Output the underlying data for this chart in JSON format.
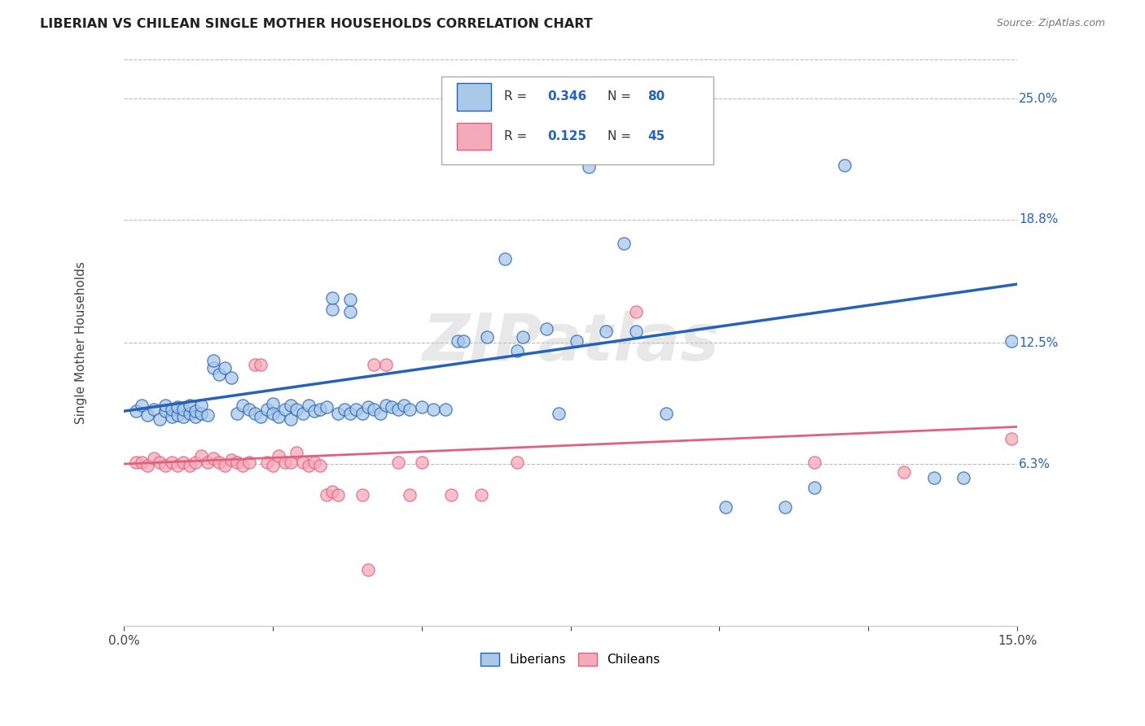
{
  "title": "LIBERIAN VS CHILEAN SINGLE MOTHER HOUSEHOLDS CORRELATION CHART",
  "source": "Source: ZipAtlas.com",
  "ylabel": "Single Mother Households",
  "x_min": 0.0,
  "x_max": 0.15,
  "y_min": -0.02,
  "y_max": 0.27,
  "y_ticks_right": [
    0.063,
    0.125,
    0.188,
    0.25
  ],
  "y_tick_labels_right": [
    "6.3%",
    "12.5%",
    "18.8%",
    "25.0%"
  ],
  "liberian_color": "#aac8e8",
  "chilean_color": "#f4aab8",
  "liberian_line_color": "#2563b8",
  "chilean_line_color": "#e06080",
  "lib_line_y0": 0.09,
  "lib_line_y1": 0.155,
  "chi_line_y0": 0.063,
  "chi_line_y1": 0.082,
  "watermark": "ZIPatlas",
  "background_color": "#ffffff",
  "grid_color": "#bbbbbb",
  "liberian_points": [
    [
      0.002,
      0.09
    ],
    [
      0.003,
      0.093
    ],
    [
      0.004,
      0.088
    ],
    [
      0.005,
      0.091
    ],
    [
      0.006,
      0.086
    ],
    [
      0.007,
      0.09
    ],
    [
      0.007,
      0.093
    ],
    [
      0.008,
      0.087
    ],
    [
      0.008,
      0.091
    ],
    [
      0.009,
      0.088
    ],
    [
      0.009,
      0.092
    ],
    [
      0.01,
      0.087
    ],
    [
      0.01,
      0.091
    ],
    [
      0.011,
      0.089
    ],
    [
      0.011,
      0.093
    ],
    [
      0.012,
      0.087
    ],
    [
      0.012,
      0.09
    ],
    [
      0.013,
      0.089
    ],
    [
      0.013,
      0.093
    ],
    [
      0.014,
      0.088
    ],
    [
      0.015,
      0.112
    ],
    [
      0.015,
      0.116
    ],
    [
      0.016,
      0.109
    ],
    [
      0.017,
      0.112
    ],
    [
      0.018,
      0.107
    ],
    [
      0.019,
      0.089
    ],
    [
      0.02,
      0.093
    ],
    [
      0.021,
      0.091
    ],
    [
      0.022,
      0.089
    ],
    [
      0.023,
      0.087
    ],
    [
      0.024,
      0.091
    ],
    [
      0.025,
      0.094
    ],
    [
      0.025,
      0.089
    ],
    [
      0.026,
      0.087
    ],
    [
      0.027,
      0.091
    ],
    [
      0.028,
      0.086
    ],
    [
      0.028,
      0.093
    ],
    [
      0.029,
      0.091
    ],
    [
      0.03,
      0.089
    ],
    [
      0.031,
      0.093
    ],
    [
      0.032,
      0.09
    ],
    [
      0.033,
      0.091
    ],
    [
      0.034,
      0.092
    ],
    [
      0.035,
      0.142
    ],
    [
      0.035,
      0.148
    ],
    [
      0.036,
      0.089
    ],
    [
      0.037,
      0.091
    ],
    [
      0.038,
      0.089
    ],
    [
      0.038,
      0.141
    ],
    [
      0.038,
      0.147
    ],
    [
      0.039,
      0.091
    ],
    [
      0.04,
      0.089
    ],
    [
      0.041,
      0.092
    ],
    [
      0.042,
      0.091
    ],
    [
      0.043,
      0.089
    ],
    [
      0.044,
      0.093
    ],
    [
      0.045,
      0.092
    ],
    [
      0.046,
      0.091
    ],
    [
      0.047,
      0.093
    ],
    [
      0.048,
      0.091
    ],
    [
      0.05,
      0.092
    ],
    [
      0.052,
      0.091
    ],
    [
      0.054,
      0.091
    ],
    [
      0.056,
      0.126
    ],
    [
      0.057,
      0.126
    ],
    [
      0.061,
      0.128
    ],
    [
      0.064,
      0.168
    ],
    [
      0.066,
      0.121
    ],
    [
      0.067,
      0.128
    ],
    [
      0.071,
      0.132
    ],
    [
      0.073,
      0.089
    ],
    [
      0.076,
      0.126
    ],
    [
      0.078,
      0.215
    ],
    [
      0.081,
      0.131
    ],
    [
      0.084,
      0.176
    ],
    [
      0.086,
      0.131
    ],
    [
      0.091,
      0.089
    ],
    [
      0.101,
      0.041
    ],
    [
      0.111,
      0.041
    ],
    [
      0.116,
      0.051
    ],
    [
      0.121,
      0.216
    ],
    [
      0.136,
      0.056
    ],
    [
      0.141,
      0.056
    ],
    [
      0.149,
      0.126
    ]
  ],
  "chilean_points": [
    [
      0.002,
      0.064
    ],
    [
      0.003,
      0.064
    ],
    [
      0.004,
      0.062
    ],
    [
      0.005,
      0.066
    ],
    [
      0.006,
      0.064
    ],
    [
      0.007,
      0.062
    ],
    [
      0.008,
      0.064
    ],
    [
      0.009,
      0.062
    ],
    [
      0.01,
      0.064
    ],
    [
      0.011,
      0.062
    ],
    [
      0.012,
      0.064
    ],
    [
      0.013,
      0.067
    ],
    [
      0.014,
      0.064
    ],
    [
      0.015,
      0.066
    ],
    [
      0.016,
      0.064
    ],
    [
      0.017,
      0.062
    ],
    [
      0.018,
      0.065
    ],
    [
      0.019,
      0.064
    ],
    [
      0.02,
      0.062
    ],
    [
      0.021,
      0.064
    ],
    [
      0.022,
      0.114
    ],
    [
      0.023,
      0.114
    ],
    [
      0.024,
      0.064
    ],
    [
      0.025,
      0.062
    ],
    [
      0.026,
      0.067
    ],
    [
      0.027,
      0.064
    ],
    [
      0.028,
      0.064
    ],
    [
      0.029,
      0.069
    ],
    [
      0.03,
      0.064
    ],
    [
      0.031,
      0.062
    ],
    [
      0.032,
      0.064
    ],
    [
      0.033,
      0.062
    ],
    [
      0.034,
      0.047
    ],
    [
      0.035,
      0.049
    ],
    [
      0.036,
      0.047
    ],
    [
      0.04,
      0.047
    ],
    [
      0.041,
      0.009
    ],
    [
      0.042,
      0.114
    ],
    [
      0.044,
      0.114
    ],
    [
      0.046,
      0.064
    ],
    [
      0.048,
      0.047
    ],
    [
      0.05,
      0.064
    ],
    [
      0.055,
      0.047
    ],
    [
      0.06,
      0.047
    ],
    [
      0.066,
      0.064
    ],
    [
      0.086,
      0.141
    ],
    [
      0.116,
      0.064
    ],
    [
      0.131,
      0.059
    ],
    [
      0.149,
      0.076
    ]
  ]
}
